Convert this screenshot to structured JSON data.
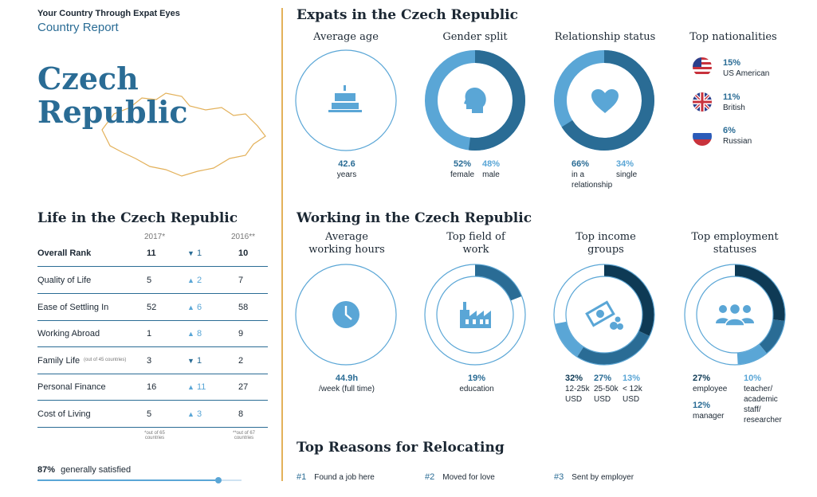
{
  "header": {
    "supertitle": "Your Country Through Expat Eyes",
    "subtitle": "Country Report",
    "country_line1": "Czech",
    "country_line2": "Republic"
  },
  "life": {
    "title": "Life in the Czech Republic",
    "col_2017": "2017*",
    "col_2016": "2016**",
    "rows": [
      {
        "label": "Overall Rank",
        "note": "",
        "rank2017": "11",
        "change": "1",
        "direction": "down",
        "rank2016": "10"
      },
      {
        "label": "Quality of Life",
        "note": "",
        "rank2017": "5",
        "change": "2",
        "direction": "up",
        "rank2016": "7"
      },
      {
        "label": "Ease of Settling In",
        "note": "",
        "rank2017": "52",
        "change": "6",
        "direction": "up",
        "rank2016": "58"
      },
      {
        "label": "Working Abroad",
        "note": "",
        "rank2017": "1",
        "change": "8",
        "direction": "up",
        "rank2016": "9"
      },
      {
        "label": "Family Life",
        "note": "(out of 45 countries)",
        "rank2017": "3",
        "change": "1",
        "direction": "down",
        "rank2016": "2"
      },
      {
        "label": "Personal Finance",
        "note": "",
        "rank2017": "16",
        "change": "11",
        "direction": "up",
        "rank2016": "27"
      },
      {
        "label": "Cost of Living",
        "note": "",
        "rank2017": "5",
        "change": "3",
        "direction": "up",
        "rank2016": "8"
      }
    ],
    "footnote_2017": "*out of 65 countries",
    "footnote_2016": "**out of 67 countries",
    "satisfied_percent": "87%",
    "satisfied_label": "generally satisfied",
    "satisfied_fraction": 0.87
  },
  "expats": {
    "title": "Expats in the Czech Republic",
    "avg_age": {
      "title": "Average age",
      "value": "42.6",
      "unit": "years"
    },
    "gender": {
      "title": "Gender split",
      "female_pct": "52%",
      "female_label": "female",
      "male_pct": "48%",
      "male_label": "male",
      "female_fraction": 0.52
    },
    "relationship": {
      "title": "Relationship status",
      "rel_pct": "66%",
      "rel_label": "in a relationship",
      "single_pct": "34%",
      "single_label": "single",
      "rel_fraction": 0.66
    },
    "nationalities": {
      "title": "Top nationalities",
      "items": [
        {
          "pct": "15%",
          "label": "US American",
          "flag": "us-flag"
        },
        {
          "pct": "11%",
          "label": "British",
          "flag": "uk-flag"
        },
        {
          "pct": "6%",
          "label": "Russian",
          "flag": "russia-flag"
        }
      ]
    }
  },
  "working": {
    "title": "Working in the Czech Republic",
    "hours": {
      "title": "Average working hours",
      "value": "44.9h",
      "unit": "/week (full time)"
    },
    "field": {
      "title": "Top field of work",
      "pct": "19%",
      "label": "education",
      "fraction": 0.19
    },
    "income": {
      "title": "Top income groups",
      "items": [
        {
          "pct": "32%",
          "label": "12-25k USD",
          "fraction": 0.32
        },
        {
          "pct": "27%",
          "label": "25-50k USD",
          "fraction": 0.27
        },
        {
          "pct": "13%",
          "label": "< 12k USD",
          "fraction": 0.13
        }
      ]
    },
    "employment": {
      "title": "Top employment statuses",
      "items": [
        {
          "pct": "27%",
          "label": "employee",
          "fraction": 0.27
        },
        {
          "pct": "12%",
          "label": "manager",
          "fraction": 0.12
        },
        {
          "pct": "10%",
          "label": "teacher/ academic staff/ researcher",
          "fraction": 0.1
        }
      ]
    }
  },
  "reasons": {
    "title": "Top Reasons for Relocating",
    "items": [
      {
        "rank": "#1",
        "label": "Found a job here"
      },
      {
        "rank": "#2",
        "label": "Moved for love"
      },
      {
        "rank": "#3",
        "label": "Sent by employer"
      }
    ]
  },
  "colors": {
    "dark": "#0e3a55",
    "teal": "#2a6c95",
    "light": "#5aa6d6",
    "accent": "#e3b15a"
  }
}
